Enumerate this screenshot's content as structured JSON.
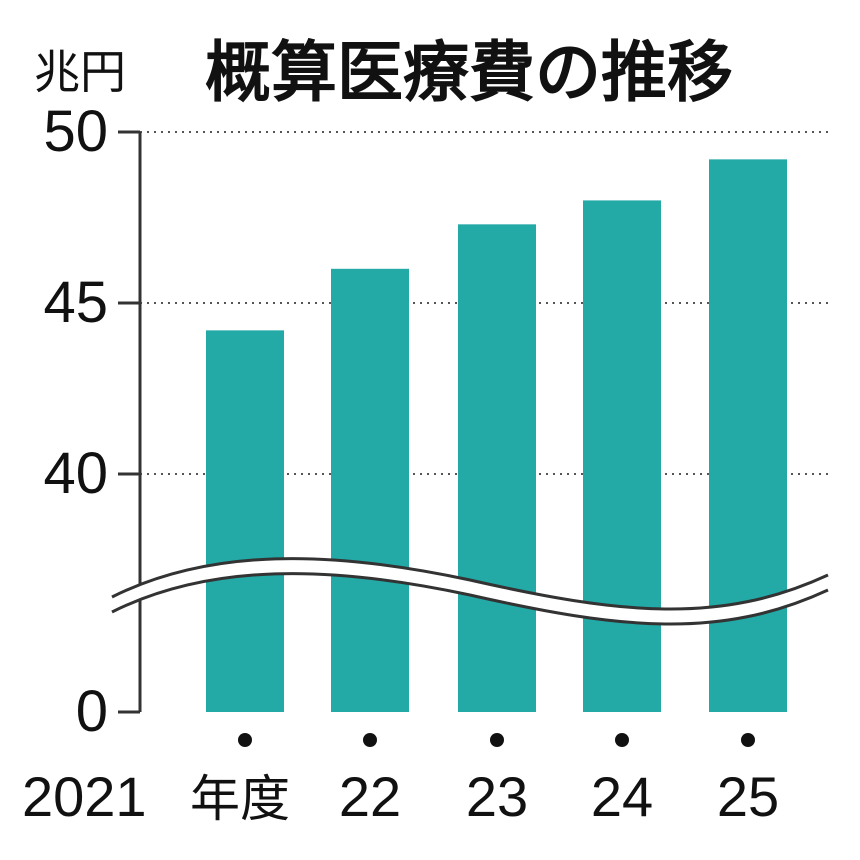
{
  "chart_data": {
    "type": "bar",
    "title": "概算医療費の推移",
    "unit_label": "兆円",
    "categories": [
      "2021",
      "22",
      "23",
      "24",
      "25"
    ],
    "category_suffix": "年度",
    "values": [
      44.2,
      46.0,
      47.3,
      48.0,
      49.2
    ],
    "ylim": [
      0,
      50
    ],
    "y_ticks": [
      0,
      40,
      45,
      50
    ],
    "y_tick_labels": [
      "0",
      "40",
      "45",
      "50"
    ],
    "axis_break": "between 0 and 40",
    "grid": "dotted at 40, 45, 50",
    "colors": {
      "bar": "#23a9a6",
      "text": "#111111",
      "axis": "#333333",
      "grid": "#555555"
    }
  }
}
